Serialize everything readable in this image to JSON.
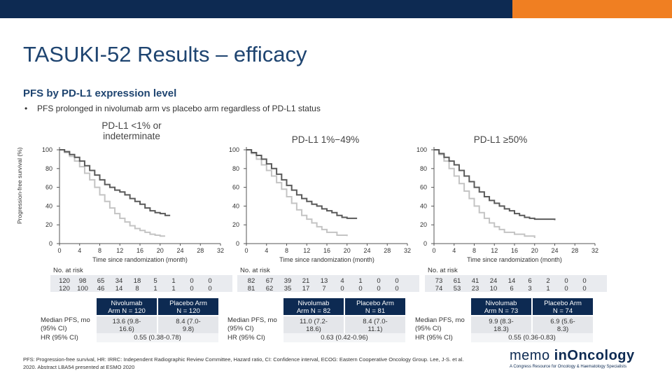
{
  "slide": {
    "title": "TASUKI-52 Results – efficacy",
    "subtitle": "PFS by PD-L1 expression level",
    "bullet": "PFS prolonged in nivolumab arm vs placebo arm regardless of PD-L1 status",
    "ylabel": "Progression-free survival (%)",
    "xlabel": "Time since randomization (month)",
    "yticks": [
      "100",
      "80",
      "60",
      "40",
      "20",
      "0"
    ],
    "xticks": [
      "0",
      "4",
      "8",
      "12",
      "16",
      "20",
      "24",
      "28",
      "32"
    ],
    "nrisk_label": "No. at risk",
    "row_labels": {
      "median": "Median PFS, mo (95% CI)",
      "hr": "HR (95% CI)"
    },
    "colors": {
      "navy": "#0d2a52",
      "orange": "#f07f22",
      "nivolumab": "#5a5a5a",
      "placebo": "#c4c4c4"
    },
    "footnote": "PFS: Progression-free survival, HR: IRRC: Independent Radiographic Review Committee, Hazard ratio, CI: Confidence interval, ECOG: Eastern Cooperative Oncology Group. Lee, J-S. et al. 2020. Abstract LBA54 presented at ESMO 2020",
    "logo": {
      "brand_a": "memo ",
      "brand_b": "inOncology",
      "tagline": "A Congress Resource for Oncology & Haematology Specialists"
    }
  },
  "panels": [
    {
      "title": "PD-L1 <1% or indeterminate",
      "nivo_risk": [
        "120",
        "98",
        "65",
        "34",
        "18",
        "5",
        "1",
        "0",
        "0"
      ],
      "placebo_risk": [
        "120",
        "100",
        "46",
        "14",
        "8",
        "1",
        "1",
        "0",
        "0"
      ],
      "nivo_arm": "Nivolumab Arm N = 120",
      "placebo_arm": "Placebo Arm N = 120",
      "nivo_median": "13.6 (9.8-16.6)",
      "placebo_median": "8.4 (7.0-9.8)",
      "hr": "0.55 (0.38-0.78)"
    },
    {
      "title": "PD-L1 1%−49%",
      "nivo_risk": [
        "82",
        "67",
        "39",
        "21",
        "13",
        "4",
        "1",
        "0",
        "0"
      ],
      "placebo_risk": [
        "81",
        "62",
        "35",
        "17",
        "7",
        "0",
        "0",
        "0",
        "0"
      ],
      "nivo_arm": "Nivolumab Arm N = 82",
      "placebo_arm": "Placebo Arm N = 81",
      "nivo_median": "11.0 (7.2-18.6)",
      "placebo_median": "8.4 (7.0-11.1)",
      "hr": "0.63 (0.42-0.96)"
    },
    {
      "title": "PD-L1 ≥50%",
      "nivo_risk": [
        "73",
        "61",
        "41",
        "24",
        "14",
        "6",
        "2",
        "0",
        "0"
      ],
      "placebo_risk": [
        "74",
        "53",
        "23",
        "10",
        "6",
        "3",
        "1",
        "0",
        "0"
      ],
      "nivo_arm": "Nivolumab Arm N = 73",
      "placebo_arm": "Placebo Arm N = 74",
      "nivo_median": "9.9 (8.3-18.3)",
      "placebo_median": "6.9 (5.6-8.3)",
      "hr": "0.55 (0.36-0.83)"
    }
  ],
  "chart_data": [
    {
      "type": "line",
      "title": "PD-L1 <1% or indeterminate",
      "xlabel": "Time since randomization (month)",
      "ylabel": "Progression-free survival (%)",
      "xlim": [
        0,
        32
      ],
      "ylim": [
        0,
        100
      ],
      "series": [
        {
          "name": "Nivolumab Arm",
          "x": [
            0,
            1,
            2,
            3,
            4,
            5,
            6,
            7,
            8,
            9,
            10,
            11,
            12,
            13,
            14,
            15,
            16,
            17,
            18,
            19,
            20,
            21,
            22
          ],
          "y": [
            100,
            98,
            95,
            92,
            88,
            83,
            78,
            73,
            68,
            63,
            60,
            57,
            55,
            52,
            48,
            45,
            42,
            38,
            35,
            33,
            32,
            30,
            30
          ]
        },
        {
          "name": "Placebo Arm",
          "x": [
            0,
            1,
            2,
            3,
            4,
            5,
            6,
            7,
            8,
            9,
            10,
            11,
            12,
            13,
            14,
            15,
            16,
            17,
            18,
            19,
            20,
            21
          ],
          "y": [
            100,
            97,
            93,
            88,
            82,
            75,
            68,
            60,
            52,
            45,
            38,
            32,
            27,
            23,
            19,
            16,
            14,
            12,
            10,
            9,
            8,
            8
          ]
        }
      ]
    },
    {
      "type": "line",
      "title": "PD-L1 1%−49%",
      "xlabel": "Time since randomization (month)",
      "ylabel": "Progression-free survival (%)",
      "xlim": [
        0,
        32
      ],
      "ylim": [
        0,
        100
      ],
      "series": [
        {
          "name": "Nivolumab Arm",
          "x": [
            0,
            1,
            2,
            3,
            4,
            5,
            6,
            7,
            8,
            9,
            10,
            11,
            12,
            13,
            14,
            15,
            16,
            17,
            18,
            19,
            20,
            22
          ],
          "y": [
            100,
            97,
            94,
            90,
            85,
            80,
            74,
            68,
            62,
            57,
            52,
            48,
            45,
            42,
            40,
            37,
            35,
            33,
            30,
            28,
            27,
            27
          ]
        },
        {
          "name": "Placebo Arm",
          "x": [
            0,
            1,
            2,
            3,
            4,
            5,
            6,
            7,
            8,
            9,
            10,
            11,
            12,
            13,
            14,
            15,
            16,
            18,
            20
          ],
          "y": [
            100,
            96,
            90,
            84,
            78,
            72,
            65,
            58,
            50,
            43,
            36,
            30,
            26,
            22,
            18,
            15,
            12,
            9,
            8
          ]
        }
      ]
    },
    {
      "type": "line",
      "title": "PD-L1 ≥50%",
      "xlabel": "Time since randomization (month)",
      "ylabel": "Progression-free survival (%)",
      "xlim": [
        0,
        32
      ],
      "ylim": [
        0,
        100
      ],
      "series": [
        {
          "name": "Nivolumab Arm",
          "x": [
            0,
            1,
            2,
            3,
            4,
            5,
            6,
            7,
            8,
            9,
            10,
            11,
            12,
            13,
            14,
            15,
            16,
            17,
            18,
            19,
            20,
            22,
            24
          ],
          "y": [
            100,
            96,
            92,
            88,
            84,
            78,
            72,
            66,
            60,
            55,
            50,
            46,
            43,
            40,
            37,
            35,
            32,
            30,
            28,
            27,
            26,
            26,
            25
          ]
        },
        {
          "name": "Placebo Arm",
          "x": [
            0,
            1,
            2,
            3,
            4,
            5,
            6,
            7,
            8,
            9,
            10,
            11,
            12,
            13,
            14,
            16,
            18,
            20
          ],
          "y": [
            100,
            95,
            88,
            80,
            72,
            64,
            56,
            48,
            40,
            33,
            27,
            22,
            18,
            15,
            12,
            10,
            8,
            6
          ]
        }
      ]
    }
  ]
}
